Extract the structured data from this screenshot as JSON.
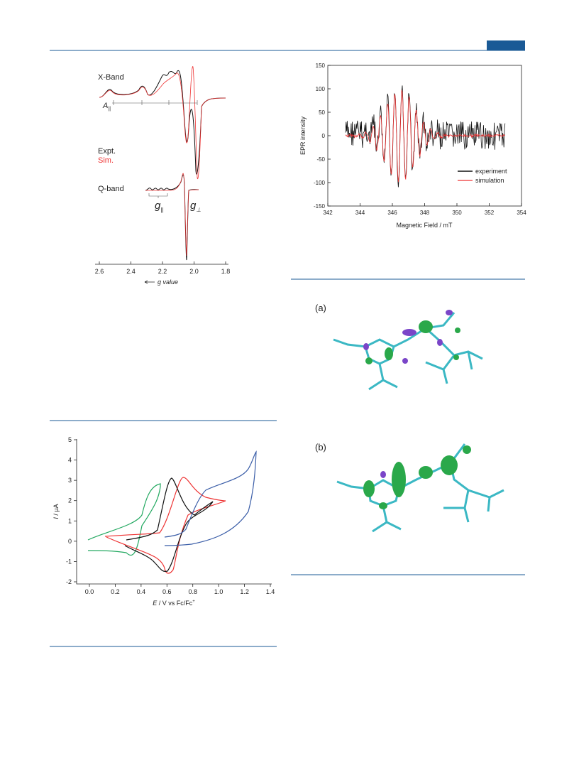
{
  "fig_xq": {
    "x_band": "X-Band",
    "a_par": "A",
    "a_sub": "||",
    "expt": "Expt.",
    "sim": "Sim.",
    "q_band": "Q-band",
    "g_par": "g",
    "g_par_sub": "||",
    "g_perp": "g",
    "g_perp_sub": "⊥",
    "xticks": [
      "2.6",
      "2.4",
      "2.2",
      "2.0",
      "1.8"
    ],
    "xlabel": "g value"
  },
  "fig_epr": {
    "yticks": [
      150,
      100,
      50,
      0,
      -50,
      -100,
      -150
    ],
    "xticks": [
      342,
      344,
      346,
      348,
      350,
      352,
      354
    ],
    "ylabel": "EPR intensity",
    "xlabel": "Magnetic Field / mT",
    "legend": [
      "experiment",
      "simulation"
    ]
  },
  "fig_struct": {
    "a": "(a)",
    "b": "(b)"
  },
  "fig_cv": {
    "yticks": [
      5,
      4,
      3,
      2,
      1,
      0,
      -1,
      -2
    ],
    "xticks": [
      "0.0",
      "0.2",
      "0.4",
      "0.6",
      "0.8",
      "1.0",
      "1.2",
      "1.4"
    ],
    "ylabel_var": "I",
    "ylabel_unit": " / µA",
    "xlabel_var": "E",
    "xlabel_unit": " / V vs Fc/Fc",
    "xlabel_sup": "+"
  }
}
